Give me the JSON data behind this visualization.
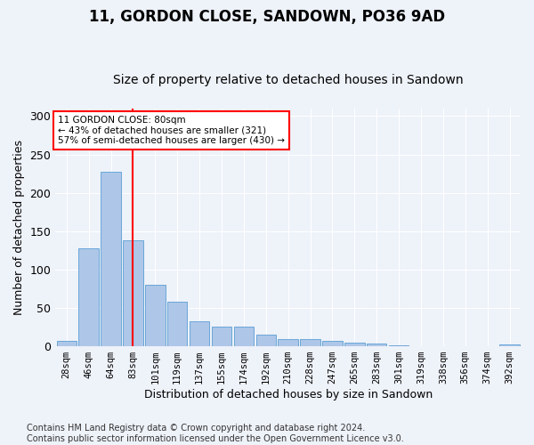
{
  "title": "11, GORDON CLOSE, SANDOWN, PO36 9AD",
  "subtitle": "Size of property relative to detached houses in Sandown",
  "xlabel": "Distribution of detached houses by size in Sandown",
  "ylabel": "Number of detached properties",
  "categories": [
    "28sqm",
    "46sqm",
    "64sqm",
    "83sqm",
    "101sqm",
    "119sqm",
    "137sqm",
    "155sqm",
    "174sqm",
    "192sqm",
    "210sqm",
    "228sqm",
    "247sqm",
    "265sqm",
    "283sqm",
    "301sqm",
    "319sqm",
    "338sqm",
    "356sqm",
    "374sqm",
    "392sqm"
  ],
  "values": [
    7,
    128,
    227,
    138,
    80,
    58,
    33,
    26,
    26,
    15,
    9,
    9,
    7,
    5,
    3,
    1,
    0,
    0,
    0,
    0,
    2
  ],
  "bar_color": "#aec6e8",
  "bar_edge_color": "#5a9fd4",
  "vline_color": "red",
  "annotation_text": "11 GORDON CLOSE: 80sqm\n← 43% of detached houses are smaller (321)\n57% of semi-detached houses are larger (430) →",
  "annotation_box_color": "white",
  "annotation_box_edge_color": "red",
  "ylim": [
    0,
    310
  ],
  "yticks": [
    0,
    50,
    100,
    150,
    200,
    250,
    300
  ],
  "background_color": "#eef2f9",
  "footer": "Contains HM Land Registry data © Crown copyright and database right 2024.\nContains public sector information licensed under the Open Government Licence v3.0.",
  "title_fontsize": 12,
  "subtitle_fontsize": 10,
  "xlabel_fontsize": 9,
  "ylabel_fontsize": 9,
  "footer_fontsize": 7,
  "vline_index": 3
}
